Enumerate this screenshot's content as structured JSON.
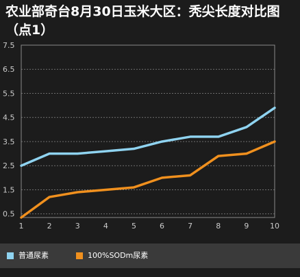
{
  "title": "农业部奇台8月30日玉米大区：秃尖长度对比图（点1）",
  "colors": {
    "background": "#1c1c1c",
    "grid": "#8a8a8a",
    "axis_text": "#cccccc",
    "legend_bg": "#3a3a3a"
  },
  "chart_data": {
    "type": "line",
    "title": "农业部奇台8月30日玉米大区：秃尖长度对比图（点1）",
    "x": [
      1,
      2,
      3,
      4,
      5,
      6,
      7,
      8,
      9,
      10
    ],
    "x_tick_labels": [
      "1",
      "2",
      "3",
      "4",
      "5",
      "6",
      "7",
      "8",
      "9",
      "10"
    ],
    "y_ticks": [
      0.5,
      1.5,
      2.5,
      3.5,
      4.5,
      5.5,
      6.5,
      7.5
    ],
    "y_tick_labels": [
      "0.5",
      "1.5",
      "2.5",
      "3.5",
      "4.5",
      "5.5",
      "6.5",
      "7.5"
    ],
    "ylim": [
      0.35,
      7.5
    ],
    "grid": true,
    "legend_position": "bottom",
    "series": [
      {
        "name": "普通尿素",
        "color": "#8fd3f0",
        "values": [
          2.5,
          3.0,
          3.0,
          3.1,
          3.2,
          3.5,
          3.7,
          3.7,
          4.1,
          4.9
        ]
      },
      {
        "name": "100%SODm尿素",
        "color": "#f0901e",
        "values": [
          0.35,
          1.2,
          1.4,
          1.5,
          1.6,
          2.0,
          2.1,
          2.9,
          3.0,
          3.5
        ]
      }
    ]
  }
}
